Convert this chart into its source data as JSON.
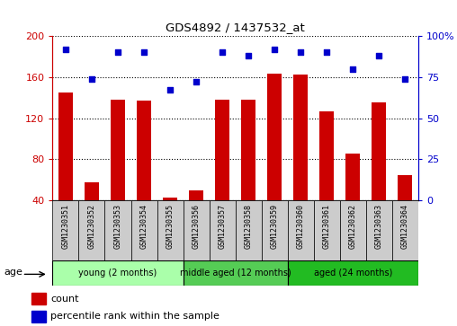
{
  "title": "GDS4892 / 1437532_at",
  "samples": [
    "GSM1230351",
    "GSM1230352",
    "GSM1230353",
    "GSM1230354",
    "GSM1230355",
    "GSM1230356",
    "GSM1230357",
    "GSM1230358",
    "GSM1230359",
    "GSM1230360",
    "GSM1230361",
    "GSM1230362",
    "GSM1230363",
    "GSM1230364"
  ],
  "counts": [
    145,
    58,
    138,
    137,
    43,
    50,
    138,
    138,
    163,
    162,
    127,
    86,
    135,
    65
  ],
  "percentile_ranks": [
    92,
    74,
    90,
    90,
    67,
    72,
    90,
    88,
    92,
    90,
    90,
    80,
    88,
    74
  ],
  "ylim_left": [
    40,
    200
  ],
  "ylim_right": [
    0,
    100
  ],
  "yticks_left": [
    40,
    80,
    120,
    160,
    200
  ],
  "yticks_right": [
    0,
    25,
    50,
    75,
    100
  ],
  "groups": [
    {
      "label": "young (2 months)",
      "start": 0,
      "end": 5,
      "color": "#aaffaa"
    },
    {
      "label": "middle aged (12 months)",
      "start": 5,
      "end": 9,
      "color": "#55cc55"
    },
    {
      "label": "aged (24 months)",
      "start": 9,
      "end": 14,
      "color": "#22bb22"
    }
  ],
  "bar_color": "#cc0000",
  "dot_color": "#0000cc",
  "grid_color": "#000000",
  "left_tick_color": "#cc0000",
  "right_tick_color": "#0000cc",
  "cell_bg": "#cccccc",
  "plot_bg": "#ffffff"
}
